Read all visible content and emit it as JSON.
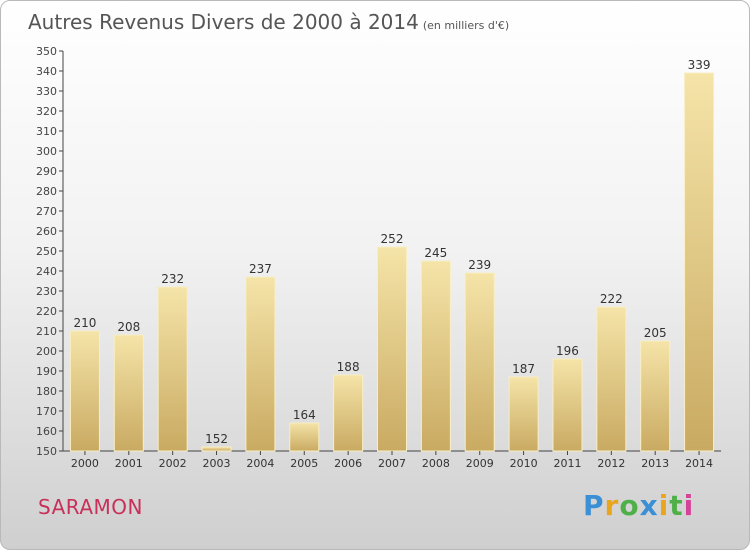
{
  "title": "Autres Revenus Divers de 2000 à 2014",
  "subtitle": "(en milliers d'€)",
  "city": "SARAMON",
  "logo": {
    "letters": [
      "P",
      "r",
      "o",
      "x",
      "i",
      "t",
      "i"
    ],
    "colors": [
      "#3a8fd6",
      "#e8a51d",
      "#4fb04a",
      "#3a8fd6",
      "#e8a51d",
      "#4fb04a",
      "#d6419a"
    ]
  },
  "colors": {
    "bar_light": "#f5e4a8",
    "bar_dark": "#c9aa62",
    "city": "#c8305a",
    "text": "#555555"
  },
  "chart_data": {
    "type": "bar",
    "categories": [
      "2000",
      "2001",
      "2002",
      "2003",
      "2004",
      "2005",
      "2006",
      "2007",
      "2008",
      "2009",
      "2010",
      "2011",
      "2012",
      "2013",
      "2014"
    ],
    "values": [
      210,
      208,
      232,
      152,
      237,
      164,
      188,
      252,
      245,
      239,
      187,
      196,
      222,
      205,
      339
    ],
    "ylim": [
      150,
      350
    ],
    "yticks": [
      150,
      160,
      170,
      180,
      190,
      200,
      210,
      220,
      230,
      240,
      250,
      260,
      270,
      280,
      290,
      300,
      310,
      320,
      330,
      340,
      350
    ],
    "grid": false,
    "data_labels": true
  }
}
